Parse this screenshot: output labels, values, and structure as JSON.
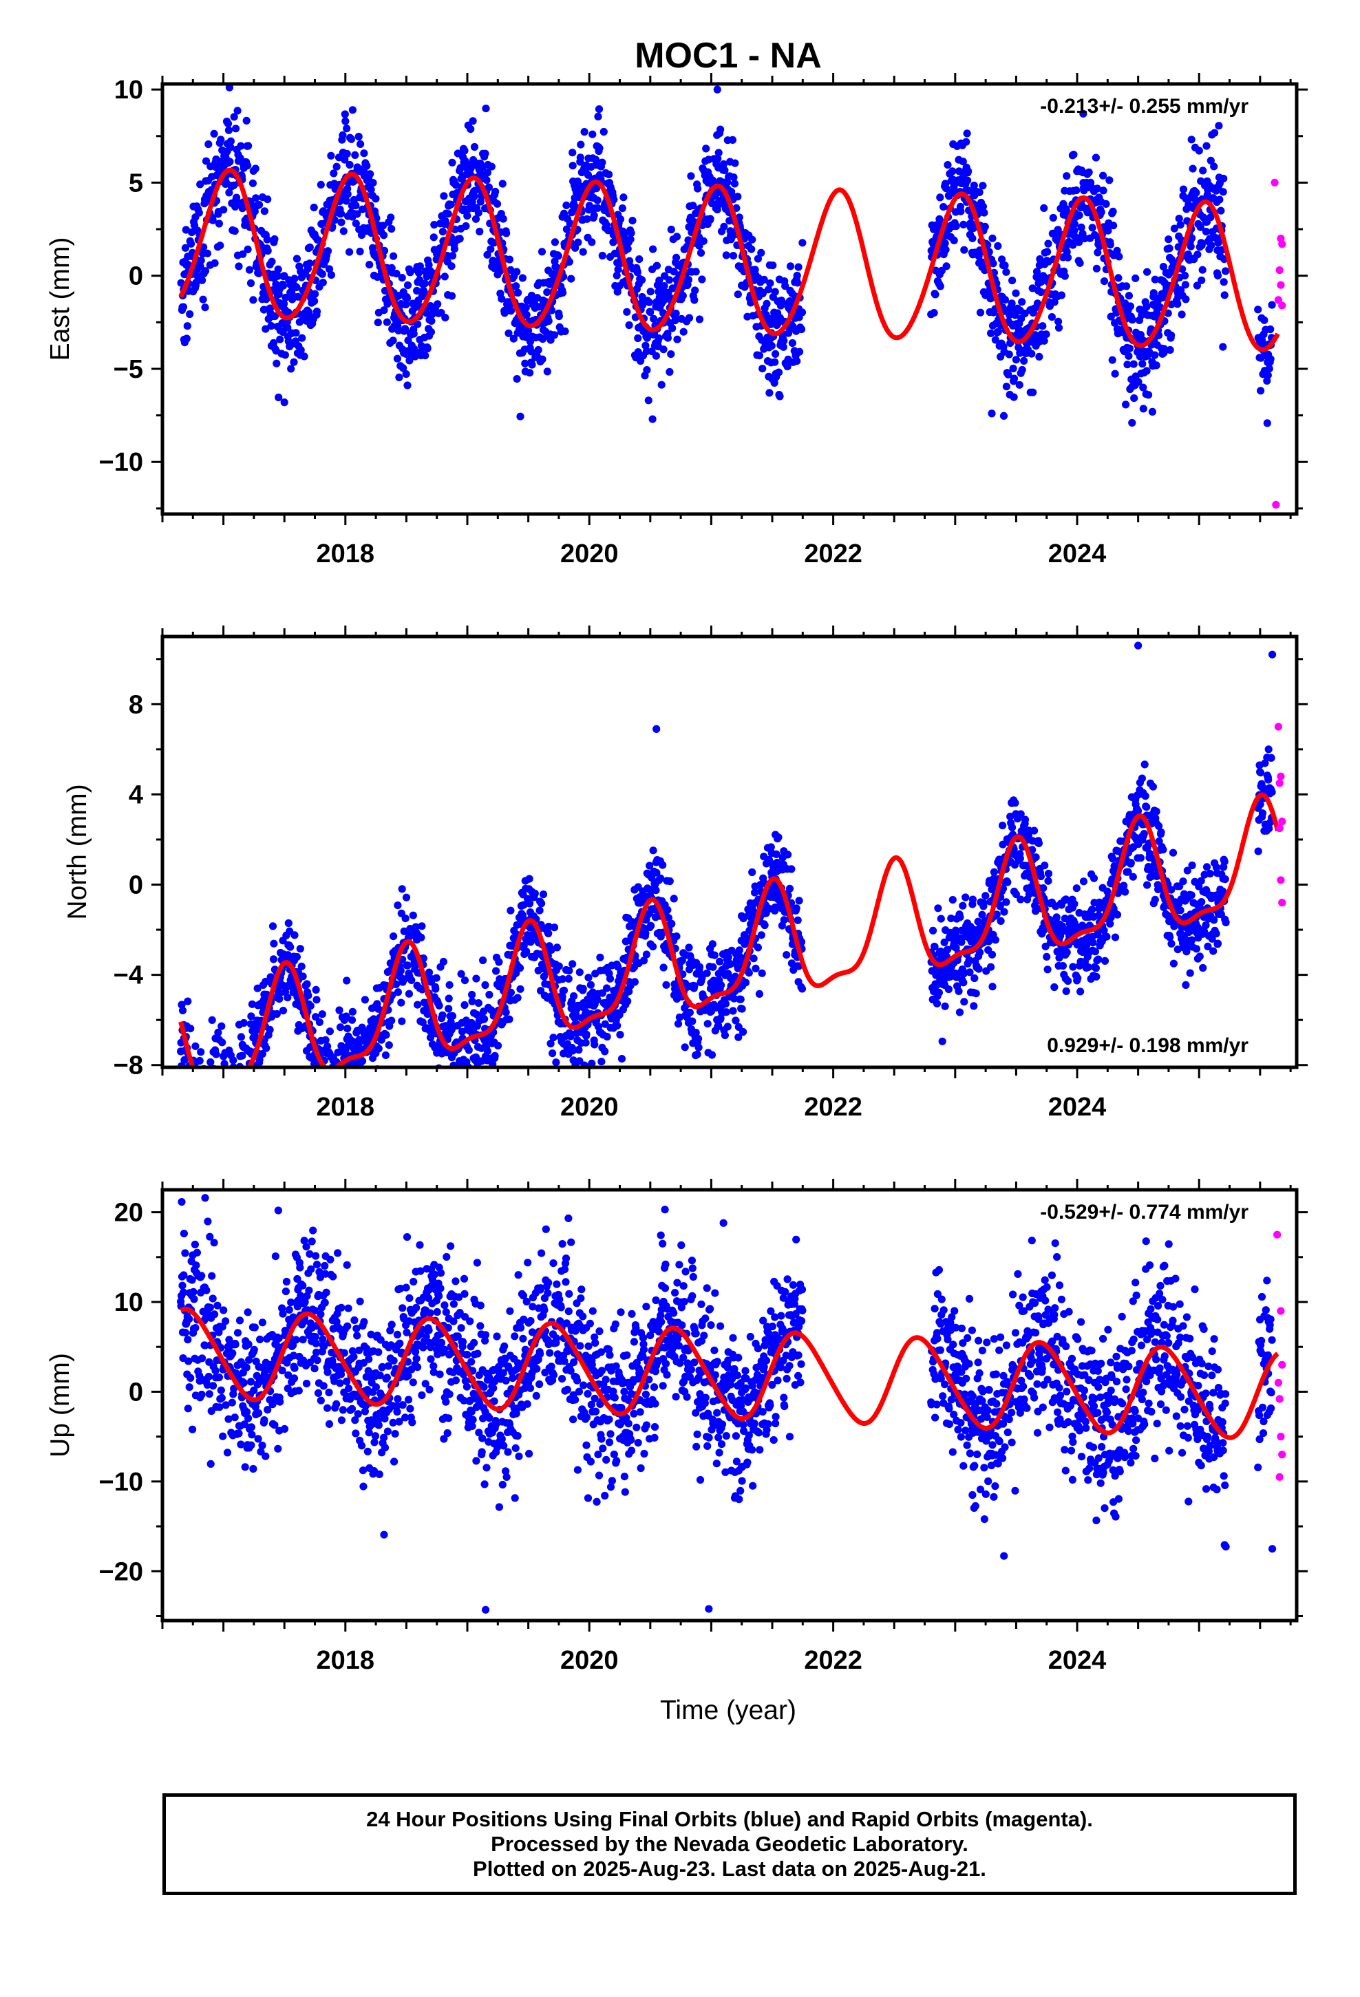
{
  "title": "MOC1 - NA",
  "xlabel": "Time (year)",
  "colors": {
    "final": "#0000ff",
    "rapid": "#ff00ff",
    "model": "#ff0000"
  },
  "footer": {
    "line1": "24 Hour Positions Using Final Orbits (blue) and Rapid Orbits (magenta).",
    "line2": "Processed by the Nevada Geodetic Laboratory.",
    "line3": "Plotted on 2025-Aug-23. Last data on 2025-Aug-21."
  },
  "chart_data": [
    {
      "type": "scatter",
      "title": "MOC1 - NA",
      "ylabel": "East (mm)",
      "rate_text": "-0.213+/- 0.255 mm/yr",
      "legend": "top-right",
      "grid": false,
      "xlim": [
        2016.5,
        2025.8
      ],
      "ylim": [
        -12.8,
        10.3
      ],
      "x_ticks": [
        2018,
        2020,
        2022,
        2024
      ],
      "y_ticks": [
        10,
        5,
        0,
        -5,
        -10
      ],
      "model": {
        "offset": 0.7,
        "rate": -0.213,
        "amp_annual": 3.9,
        "phase_annual": 0.04,
        "amp_semi": 0.3,
        "phase_semi": 0.1
      },
      "final_points": {
        "span": [
          2016.65,
          2025.6
        ],
        "gap": [
          2021.75,
          2022.8
        ],
        "noise": 1.6,
        "outliers": [
          {
            "x": 2021.05,
            "y": 10.0
          },
          {
            "x": 2018.0,
            "y": 8.3
          },
          {
            "x": 2024.05,
            "y": 8.7
          },
          {
            "x": 2017.5,
            "y": -6.8
          },
          {
            "x": 2023.3,
            "y": -7.4
          },
          {
            "x": 2024.45,
            "y": -7.9
          }
        ]
      },
      "rapid_points": [
        {
          "x": 2025.62,
          "y": 5.0
        },
        {
          "x": 2025.67,
          "y": 2.0
        },
        {
          "x": 2025.68,
          "y": 1.7
        },
        {
          "x": 2025.66,
          "y": 0.3
        },
        {
          "x": 2025.67,
          "y": -0.5
        },
        {
          "x": 2025.65,
          "y": -1.3
        },
        {
          "x": 2025.68,
          "y": -1.6
        },
        {
          "x": 2025.63,
          "y": -12.3
        }
      ]
    },
    {
      "type": "scatter",
      "ylabel": "North (mm)",
      "rate_text": "0.929+/- 0.198 mm/yr",
      "legend": "bottom-right",
      "grid": false,
      "xlim": [
        2016.5,
        2025.8
      ],
      "ylim": [
        -8.1,
        11.0
      ],
      "x_ticks": [
        2018,
        2020,
        2022,
        2024
      ],
      "y_ticks": [
        8,
        4,
        0,
        -4,
        -8
      ],
      "model": {
        "offset": -3.4,
        "rate": 0.929,
        "amp_annual": 2.4,
        "phase_annual": 0.5,
        "amp_semi": 0.8,
        "phase_semi": 0.52
      },
      "final_points": {
        "span": [
          2016.65,
          2025.6
        ],
        "gap": [
          2021.75,
          2022.8
        ],
        "noise": 1.1,
        "outliers": [
          {
            "x": 2017.9,
            "y": -7.8
          },
          {
            "x": 2020.55,
            "y": 6.9
          },
          {
            "x": 2024.5,
            "y": 10.6
          },
          {
            "x": 2025.6,
            "y": 10.2
          },
          {
            "x": 2023.75,
            "y": -3.2
          }
        ]
      },
      "rapid_points": [
        {
          "x": 2025.65,
          "y": 7.0
        },
        {
          "x": 2025.67,
          "y": 4.8
        },
        {
          "x": 2025.66,
          "y": 4.5
        },
        {
          "x": 2025.68,
          "y": 2.8
        },
        {
          "x": 2025.66,
          "y": 2.5
        },
        {
          "x": 2025.67,
          "y": 0.2
        },
        {
          "x": 2025.68,
          "y": -0.8
        }
      ]
    },
    {
      "type": "scatter",
      "ylabel": "Up (mm)",
      "rate_text": "-0.529+/- 0.774 mm/yr",
      "legend": "top-right",
      "grid": false,
      "xlim": [
        2016.5,
        2025.8
      ],
      "ylim": [
        -25.5,
        22.5
      ],
      "x_ticks": [
        2018,
        2020,
        2022,
        2024
      ],
      "y_ticks": [
        20,
        10,
        0,
        -10,
        -20
      ],
      "model": {
        "offset": 2.0,
        "rate": -0.529,
        "amp_annual": 4.8,
        "phase_annual": 0.72,
        "amp_semi": 0.5,
        "phase_semi": 0.1
      },
      "final_points": {
        "span": [
          2016.65,
          2025.6
        ],
        "gap": [
          2021.75,
          2022.8
        ],
        "noise": 4.6,
        "outliers": [
          {
            "x": 2016.85,
            "y": 21.6
          },
          {
            "x": 2019.15,
            "y": -24.3
          },
          {
            "x": 2020.98,
            "y": -24.2
          },
          {
            "x": 2021.1,
            "y": 18.8
          },
          {
            "x": 2020.62,
            "y": 20.3
          },
          {
            "x": 2017.45,
            "y": 20.2
          },
          {
            "x": 2023.4,
            "y": -18.3
          },
          {
            "x": 2025.6,
            "y": -17.5
          }
        ]
      },
      "rapid_points": [
        {
          "x": 2025.64,
          "y": 17.5
        },
        {
          "x": 2025.67,
          "y": 9.0
        },
        {
          "x": 2025.68,
          "y": 3.0
        },
        {
          "x": 2025.65,
          "y": 1.0
        },
        {
          "x": 2025.66,
          "y": -0.8
        },
        {
          "x": 2025.67,
          "y": -5.0
        },
        {
          "x": 2025.68,
          "y": -7.0
        },
        {
          "x": 2025.66,
          "y": -9.5
        }
      ]
    }
  ]
}
